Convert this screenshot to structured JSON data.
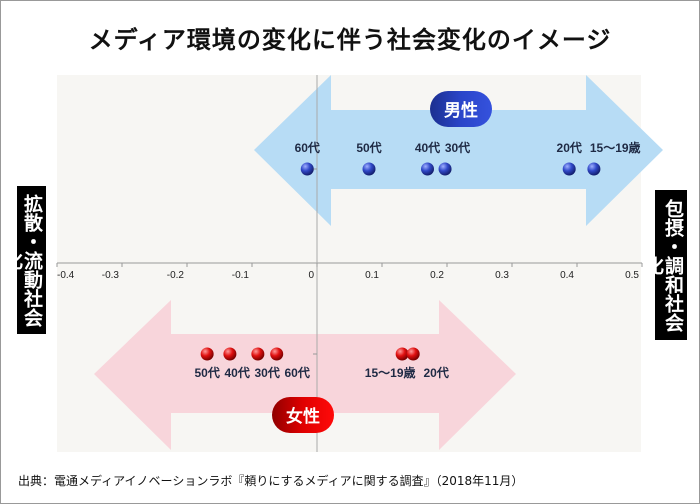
{
  "title": "メディア環境の変化に伴う社会変化のイメージ",
  "left_label": "拡散・流動社会化",
  "right_label": "包摂・調和社会化",
  "source": "出典：電通メディアイノベーションラボ『頼りにするメディアに関する調査』（2018年11月）",
  "chart_data": {
    "type": "scatter",
    "xlim": [
      -0.4,
      0.5
    ],
    "x_ticks": [
      "-0.4",
      "-0.3",
      "-0.2",
      "-0.1",
      "0",
      "0.1",
      "0.2",
      "0.3",
      "0.4",
      "0.5"
    ],
    "grid": false,
    "series": [
      {
        "name": "男性",
        "color": "#2b44c8",
        "arrow_color": "#b7dcf5",
        "badge_color": "#2a45c9",
        "points": [
          {
            "label": "60代",
            "x": -0.015
          },
          {
            "label": "50代",
            "x": 0.08
          },
          {
            "label": "40代",
            "x": 0.17
          },
          {
            "label": "30代",
            "x": 0.197
          },
          {
            "label": "20代",
            "x": 0.388
          },
          {
            "label": "15〜19歳",
            "x": 0.426
          }
        ]
      },
      {
        "name": "女性",
        "color": "#d8141a",
        "arrow_color": "#f8d5db",
        "badge_color": "#e00000",
        "points": [
          {
            "label": "50代",
            "x": -0.169
          },
          {
            "label": "40代",
            "x": -0.134
          },
          {
            "label": "30代",
            "x": -0.091
          },
          {
            "label": "60代",
            "x": -0.062
          },
          {
            "label": "15〜19歳",
            "x": 0.131
          },
          {
            "label": "20代",
            "x": 0.148
          }
        ]
      }
    ]
  }
}
